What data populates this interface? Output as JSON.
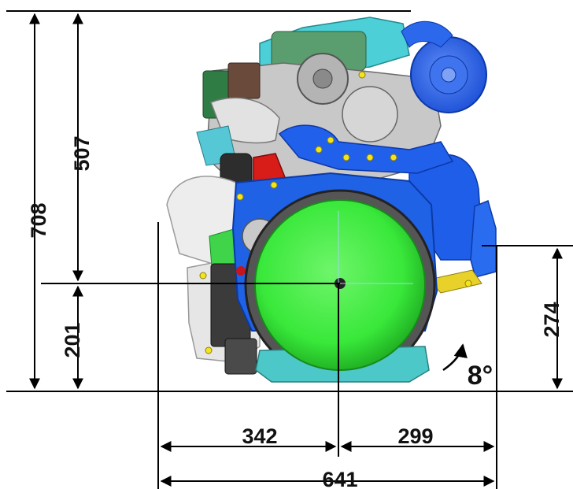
{
  "dimensions": {
    "total_height": "708",
    "upper_height": "507",
    "lower_height": "201",
    "right_height": "274",
    "left_width": "342",
    "right_width": "299",
    "total_width": "641"
  },
  "tilt_angle": "8°",
  "colors": {
    "flywheel_green": "#39e83a",
    "housing_blue": "#1f62e6",
    "turbo_blue": "#1b55ec",
    "manifold_red": "#d81c18",
    "yellow_bolts": "#f2e51a",
    "grey_parts": "#b9b9b9",
    "dark_parts": "#3d3d3d",
    "cyan_parts": "#49cfd6",
    "dimension_lines": "#000000"
  }
}
